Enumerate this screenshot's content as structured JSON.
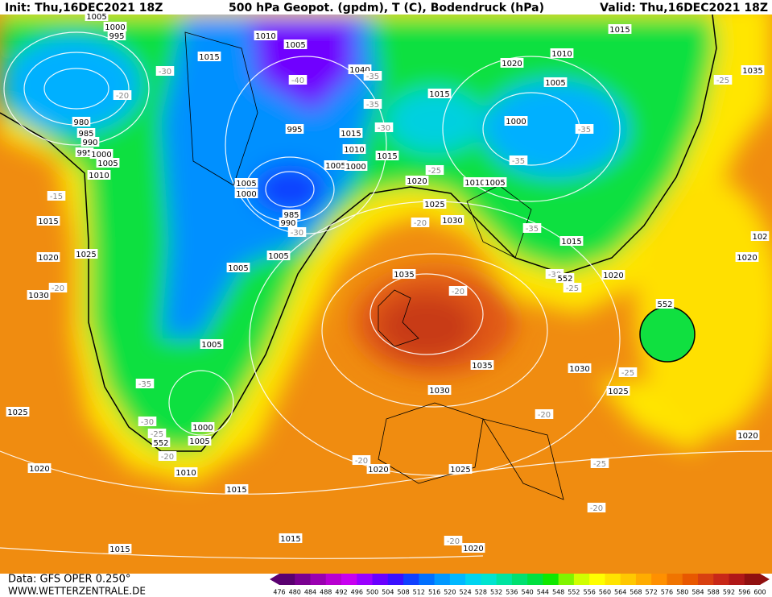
{
  "header": {
    "init": "Init: Thu,16DEC2021 18Z",
    "title": "500 hPa Geopot. (gpdm), T (C), Bodendruck (hPa)",
    "valid": "Valid: Thu,16DEC2021 18Z"
  },
  "footer": {
    "data": "Data: GFS OPER 0.250°",
    "site": "WWW.WETTERZENTRALE.DE"
  },
  "colorbar": {
    "ticks": [
      476,
      480,
      484,
      488,
      492,
      496,
      500,
      504,
      508,
      512,
      516,
      520,
      524,
      528,
      532,
      536,
      540,
      544,
      548,
      552,
      556,
      560,
      564,
      568,
      572,
      576,
      580,
      584,
      588,
      592,
      596,
      600
    ],
    "colors": [
      "#5a0070",
      "#7a0090",
      "#9a00b0",
      "#b800d0",
      "#c800f0",
      "#9a00ff",
      "#6a00ff",
      "#3a10ff",
      "#1040ff",
      "#0070ff",
      "#0098ff",
      "#00b8ff",
      "#00d4f0",
      "#00e4d0",
      "#00e4a0",
      "#00e070",
      "#00e040",
      "#10e800",
      "#80f400",
      "#d0ff00",
      "#ffff00",
      "#ffe400",
      "#ffc800",
      "#ffac00",
      "#ff9000",
      "#f07400",
      "#e85800",
      "#d84010",
      "#c82818",
      "#b01818",
      "#901010"
    ]
  },
  "map": {
    "labels": [
      "1005",
      "1000",
      "995",
      "1010",
      "1005",
      "1015",
      "1015",
      "1020",
      "1010",
      "1035",
      "-30",
      "-40",
      "1040",
      "-35",
      "-20",
      "1005",
      "1015",
      "-25",
      "-35",
      "980",
      "985",
      "990",
      "995",
      "1000",
      "1005",
      "1010",
      "1000",
      "-35",
      "995",
      "1015",
      "-30",
      "1010",
      "1015",
      "1005",
      "1000",
      "-35",
      "-25",
      "1020",
      "1010",
      "1005",
      "1005",
      "1000",
      "-15",
      "985",
      "990",
      "-30",
      "1025",
      "1030",
      "-20",
      "1015",
      "1025",
      "1020",
      "1005",
      "1005",
      "-35",
      "1015",
      "102",
      "1020",
      "1020",
      "1035",
      "-20",
      "-30",
      "552",
      "-25",
      "1030",
      "-20",
      "552",
      "1005",
      "1035",
      "1030",
      "-25",
      "1025",
      "-35",
      "1030",
      "1025",
      "-20",
      "-30",
      "1000",
      "-25",
      "1005",
      "552",
      "-20",
      "1020",
      "-20",
      "1020",
      "-25",
      "1020",
      "1010",
      "1025",
      "1015",
      "-20",
      "1015",
      "-20",
      "1020",
      "1015"
    ]
  }
}
